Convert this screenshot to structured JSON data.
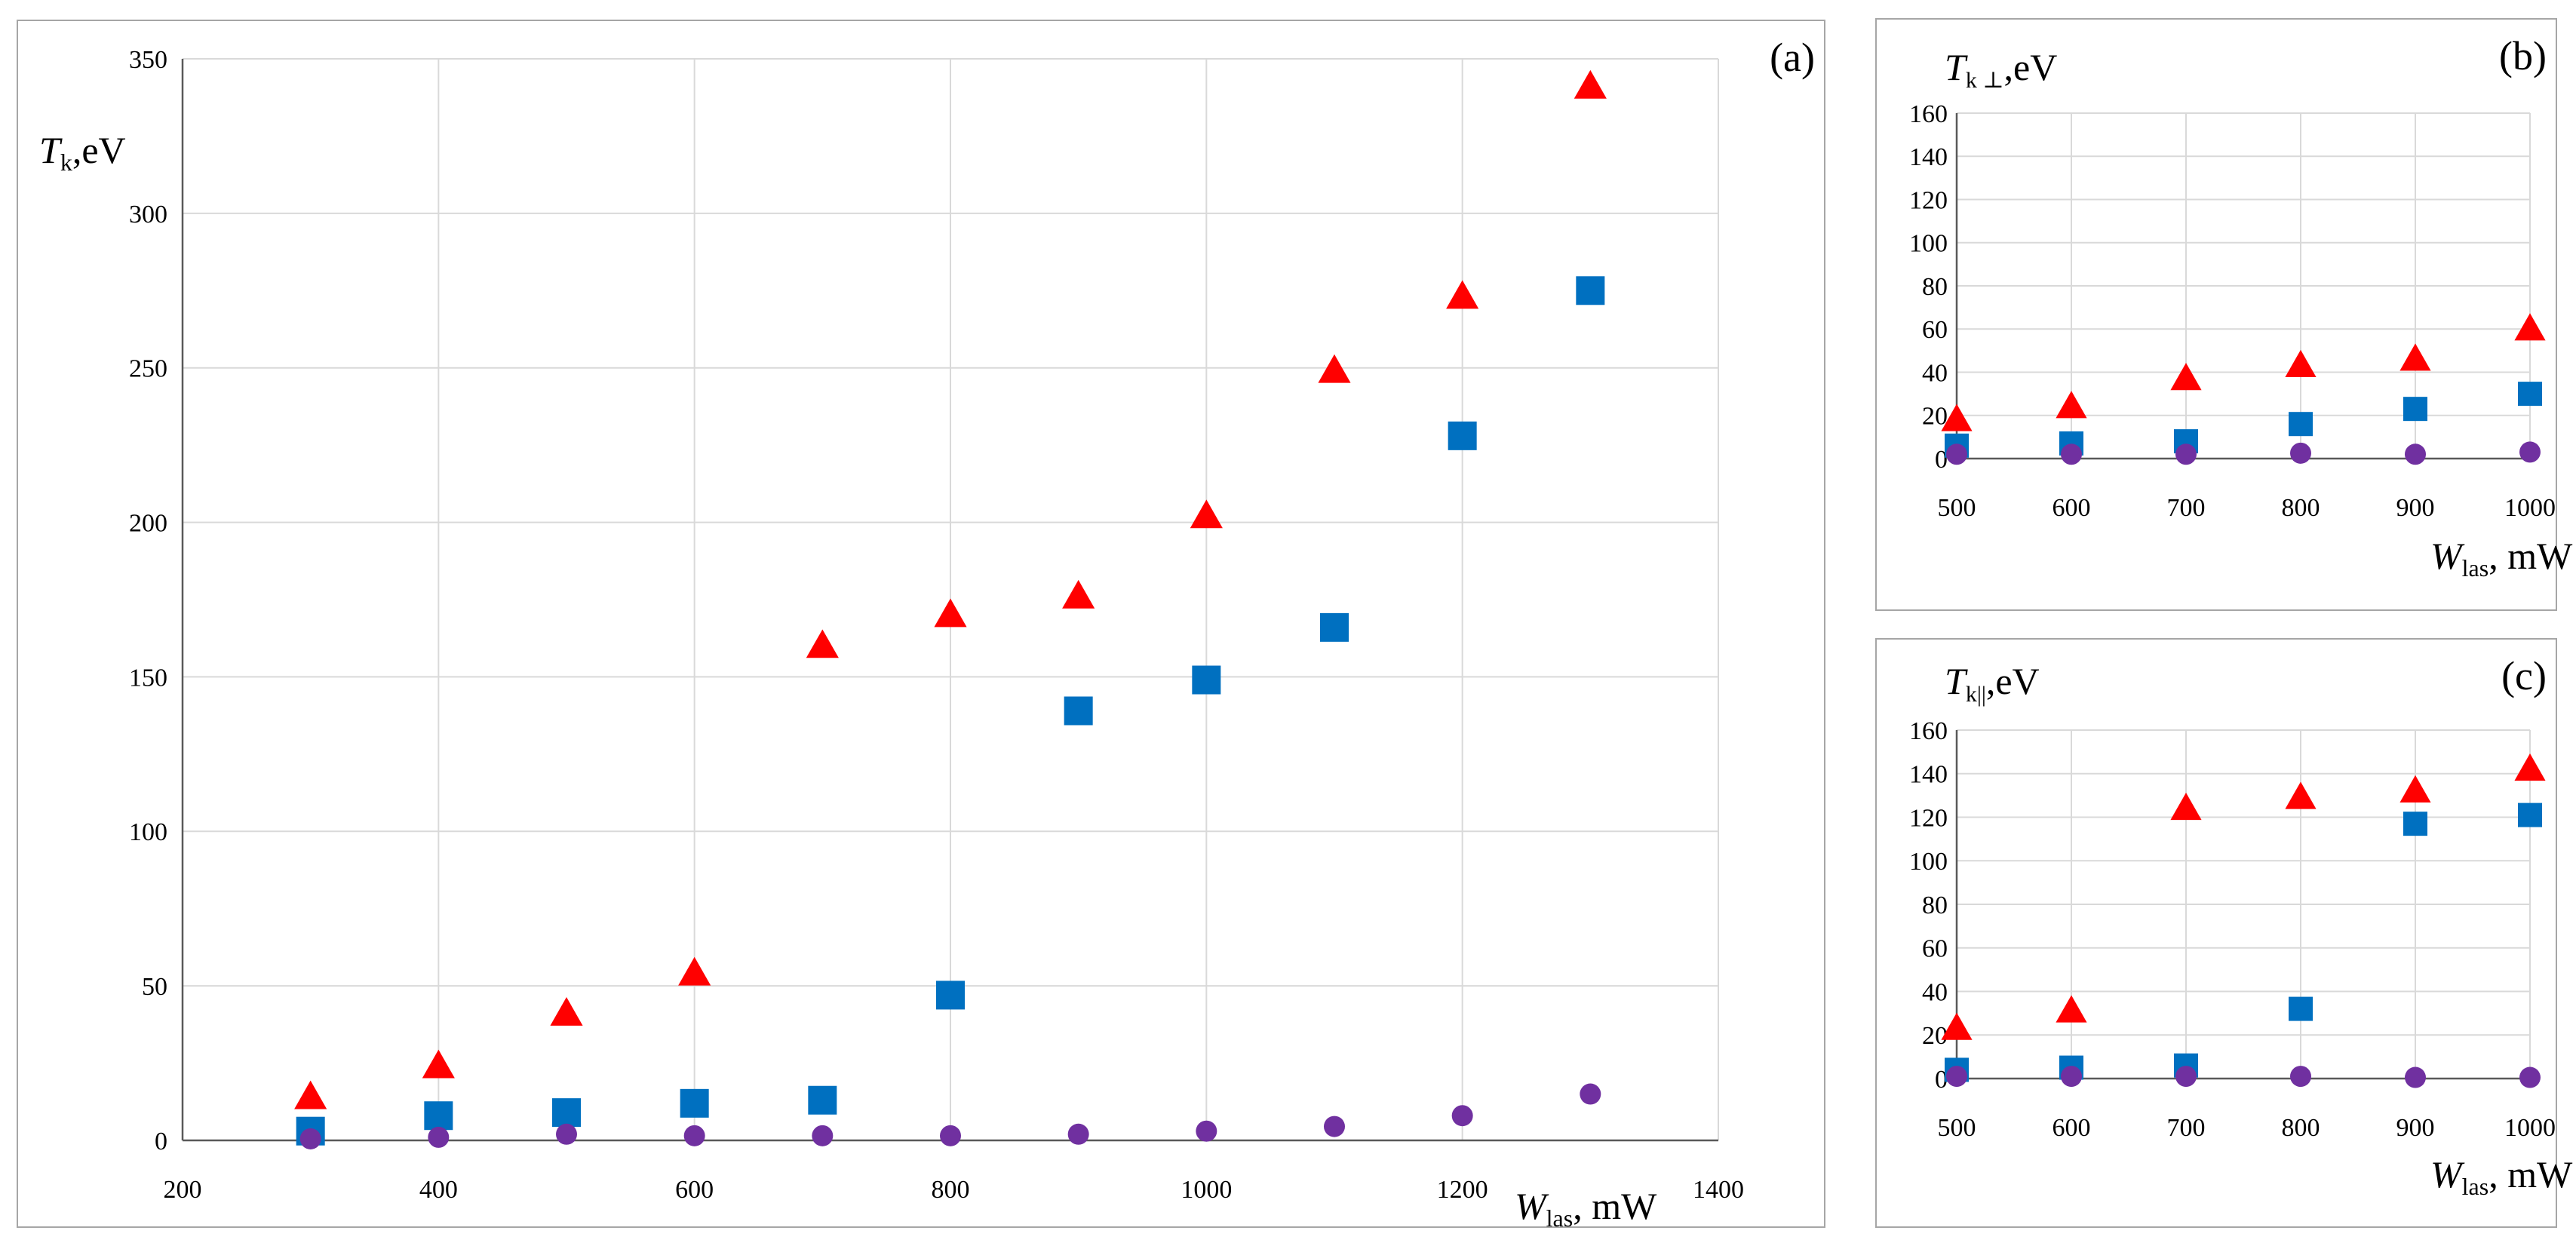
{
  "colors": {
    "triangle": "#ff0000",
    "square": "#0070c0",
    "circle": "#7030a0",
    "grid": "#d9d9d9",
    "axis": "#595959"
  },
  "chart_data": [
    {
      "id": "a",
      "type": "scatter",
      "panel_label": "(a)",
      "ylabel_sym": "T",
      "ylabel_sub": "k",
      "ylabel_unit": ",eV",
      "xlabel_sym": "W",
      "xlabel_sub": "las",
      "xlabel_unit": ", mW",
      "xlim": [
        200,
        1400
      ],
      "ylim": [
        0,
        350
      ],
      "xticks": [
        200,
        400,
        600,
        800,
        1000,
        1200,
        1400
      ],
      "yticks": [
        0,
        50,
        100,
        150,
        200,
        250,
        300,
        350
      ],
      "series": [
        {
          "name": "triangle",
          "marker": "triangle",
          "x": [
            300,
            400,
            500,
            600,
            700,
            800,
            900,
            1000,
            1100,
            1200,
            1300
          ],
          "y": [
            14,
            24,
            41,
            54,
            160,
            170,
            176,
            202,
            249,
            273,
            341
          ]
        },
        {
          "name": "square",
          "marker": "square",
          "x": [
            300,
            400,
            500,
            600,
            700,
            800,
            900,
            1000,
            1100,
            1200,
            1300
          ],
          "y": [
            3,
            8,
            9,
            12,
            13,
            47,
            139,
            149,
            166,
            228,
            275
          ]
        },
        {
          "name": "circle",
          "marker": "circle",
          "x": [
            300,
            400,
            500,
            600,
            700,
            800,
            900,
            1000,
            1100,
            1200,
            1300
          ],
          "y": [
            0.5,
            1,
            2,
            1.5,
            1.5,
            1.5,
            2,
            3,
            4.5,
            8,
            15
          ]
        }
      ]
    },
    {
      "id": "b",
      "type": "scatter",
      "panel_label": "(b)",
      "ylabel_sym": "T",
      "ylabel_sub": "k ⊥",
      "ylabel_unit": ",eV",
      "xlabel_sym": "W",
      "xlabel_sub": "las",
      "xlabel_unit": ", mW",
      "xlim": [
        500,
        1000
      ],
      "ylim": [
        0,
        160
      ],
      "xticks": [
        500,
        600,
        700,
        800,
        900,
        1000
      ],
      "yticks": [
        0,
        20,
        40,
        60,
        80,
        100,
        120,
        140,
        160
      ],
      "series": [
        {
          "name": "triangle",
          "marker": "triangle",
          "x": [
            500,
            600,
            700,
            800,
            900,
            1000
          ],
          "y": [
            18,
            24,
            37,
            43,
            46,
            60
          ]
        },
        {
          "name": "square",
          "marker": "square",
          "x": [
            500,
            600,
            700,
            800,
            900,
            1000
          ],
          "y": [
            6,
            7,
            8,
            16,
            23,
            30
          ]
        },
        {
          "name": "circle",
          "marker": "circle",
          "x": [
            500,
            600,
            700,
            800,
            900,
            1000
          ],
          "y": [
            2,
            2,
            2,
            2.5,
            2,
            3
          ]
        }
      ]
    },
    {
      "id": "c",
      "type": "scatter",
      "panel_label": "(c)",
      "ylabel_sym": "T",
      "ylabel_sub": "k||",
      "ylabel_unit": ",eV",
      "xlabel_sym": "W",
      "xlabel_sub": "las",
      "xlabel_unit": ", mW",
      "xlim": [
        500,
        1000
      ],
      "ylim": [
        0,
        160
      ],
      "xticks": [
        500,
        600,
        700,
        800,
        900,
        1000
      ],
      "yticks": [
        0,
        20,
        40,
        60,
        80,
        100,
        120,
        140,
        160
      ],
      "series": [
        {
          "name": "triangle",
          "marker": "triangle",
          "x": [
            500,
            600,
            700,
            800,
            900,
            1000
          ],
          "y": [
            23,
            31,
            124,
            129,
            132,
            142
          ]
        },
        {
          "name": "square",
          "marker": "square",
          "x": [
            500,
            600,
            700,
            800,
            900,
            1000
          ],
          "y": [
            4,
            5,
            6,
            32,
            117,
            121
          ]
        },
        {
          "name": "circle",
          "marker": "circle",
          "x": [
            500,
            600,
            700,
            800,
            900,
            1000
          ],
          "y": [
            1,
            1,
            1,
            1,
            0.5,
            0.5
          ]
        }
      ]
    }
  ]
}
